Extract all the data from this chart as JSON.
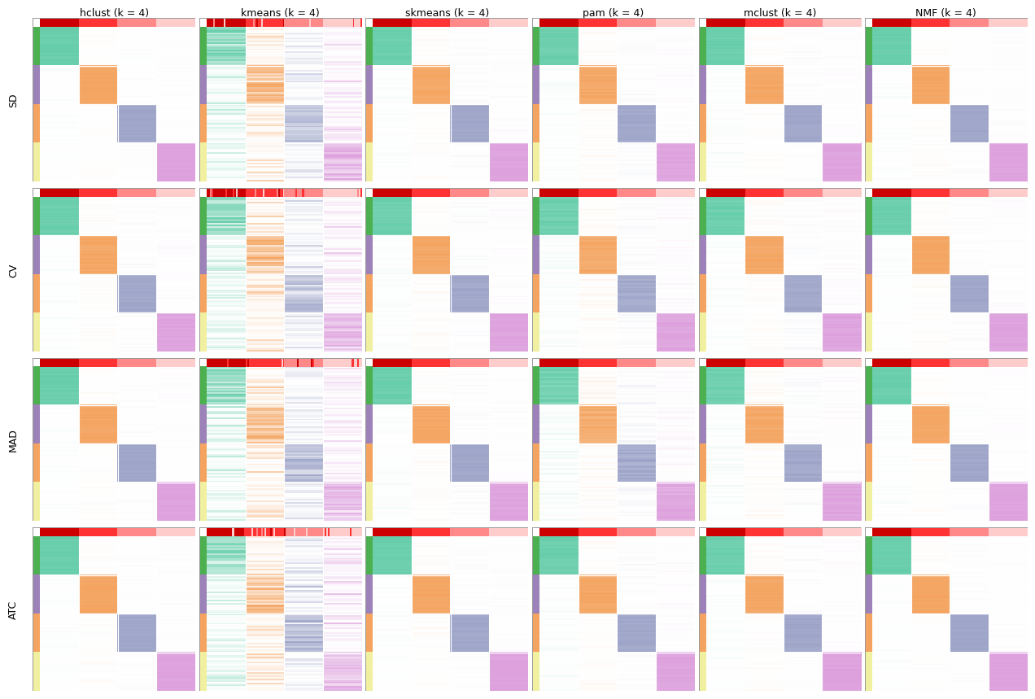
{
  "col_titles": [
    "hclust (k = 4)",
    "kmeans (k = 4)",
    "skmeans (k = 4)",
    "pam (k = 4)",
    "mclust (k = 4)",
    "NMF (k = 4)"
  ],
  "row_titles": [
    "SD",
    "CV",
    "MAD",
    "ATC"
  ],
  "cluster_colors": [
    "#66CDAA",
    "#F4A460",
    "#9DA4C8",
    "#DDA0DD"
  ],
  "top_bar_colors": [
    "#CC0000",
    "#FF3333",
    "#FF8888",
    "#FFCCCC"
  ],
  "side_bar_colors": [
    "#4CAF50",
    "#9C82B8",
    "#F4A460",
    "#F0F0A0",
    "#3060C0"
  ],
  "background_color": "#FFFFFF",
  "border_color": "#999999",
  "title_fontsize": 9,
  "label_fontsize": 9,
  "n_samples": 100,
  "n_clusters": 4
}
